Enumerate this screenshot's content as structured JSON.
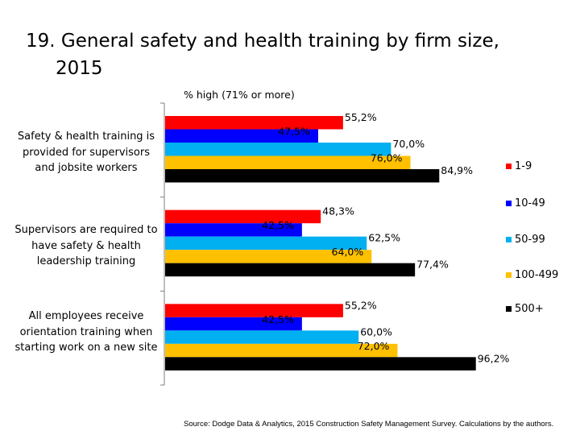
{
  "title_line1": "19. General safety and health training by firm size,",
  "title_line2": "2015",
  "source": "Source: Dodge Data & Analytics, 2015 Construction Safety Management Survey. Calculations by the authors.",
  "chart_data": {
    "type": "bar",
    "orientation": "horizontal",
    "subtitle": "% high (71% or more)",
    "categories": [
      "Safety & health training is provided for supervisors and jobsite workers",
      "Supervisors are required to have safety & health leadership training",
      "All employees receive orientation training when starting work on a new site"
    ],
    "series": [
      {
        "name": "1-9",
        "color": "#ff0000",
        "values": [
          55.2,
          48.3,
          55.2
        ],
        "labels": [
          "55,2%",
          "48,3%",
          "55,2%"
        ]
      },
      {
        "name": "10-49",
        "color": "#0000ff",
        "values": [
          47.5,
          42.5,
          42.5
        ],
        "labels": [
          "47,5%",
          "42,5%",
          "42,5%"
        ]
      },
      {
        "name": "50-99",
        "color": "#00b0f0",
        "values": [
          70.0,
          62.5,
          60.0
        ],
        "labels": [
          "70,0%",
          "62,5%",
          "60,0%"
        ]
      },
      {
        "name": "100-499",
        "color": "#ffc000",
        "values": [
          76.0,
          64.0,
          72.0
        ],
        "labels": [
          "76,0%",
          "64,0%",
          "72,0%"
        ]
      },
      {
        "name": "500+",
        "color": "#000000",
        "values": [
          84.9,
          77.4,
          96.2
        ],
        "labels": [
          "84,9%",
          "77,4%",
          "96,2%"
        ]
      }
    ],
    "xlim": [
      0,
      100
    ],
    "grid": false,
    "legend": "right"
  }
}
